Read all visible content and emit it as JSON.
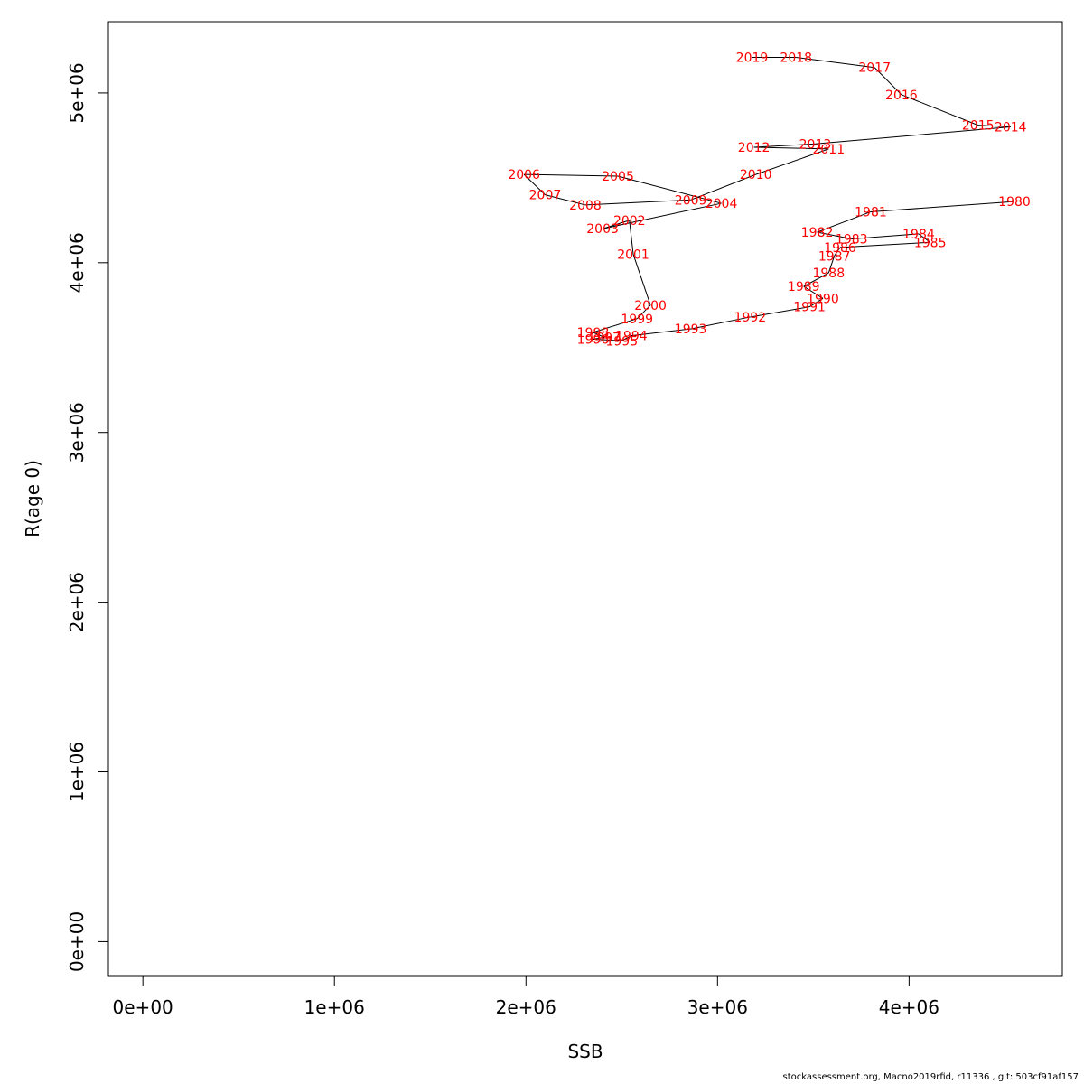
{
  "chart_data": {
    "type": "line",
    "xlabel": "SSB",
    "ylabel": "R(age 0)",
    "xlim": [
      -180000,
      4800000
    ],
    "ylim": [
      -200000,
      5420000
    ],
    "x_ticks": [
      {
        "value": 0,
        "label": "0e+00"
      },
      {
        "value": 1000000,
        "label": "1e+06"
      },
      {
        "value": 2000000,
        "label": "2e+06"
      },
      {
        "value": 3000000,
        "label": "3e+06"
      },
      {
        "value": 4000000,
        "label": "4e+06"
      }
    ],
    "y_ticks": [
      {
        "value": 0,
        "label": "0e+00"
      },
      {
        "value": 1000000,
        "label": "1e+06"
      },
      {
        "value": 2000000,
        "label": "2e+06"
      },
      {
        "value": 3000000,
        "label": "3e+06"
      },
      {
        "value": 4000000,
        "label": "4e+06"
      },
      {
        "value": 5000000,
        "label": "5e+06"
      }
    ],
    "grid": false,
    "line_color": "#000000",
    "label_color": "#ff0000",
    "points": [
      {
        "label": "1980",
        "x": 4550000,
        "y": 4360000
      },
      {
        "label": "1981",
        "x": 3800000,
        "y": 4300000
      },
      {
        "label": "1982",
        "x": 3520000,
        "y": 4180000
      },
      {
        "label": "1983",
        "x": 3700000,
        "y": 4140000
      },
      {
        "label": "1984",
        "x": 4050000,
        "y": 4170000
      },
      {
        "label": "1985",
        "x": 4110000,
        "y": 4120000
      },
      {
        "label": "1986",
        "x": 3640000,
        "y": 4090000
      },
      {
        "label": "1987",
        "x": 3610000,
        "y": 4040000
      },
      {
        "label": "1988",
        "x": 3580000,
        "y": 3940000
      },
      {
        "label": "1989",
        "x": 3450000,
        "y": 3860000
      },
      {
        "label": "1990",
        "x": 3550000,
        "y": 3790000
      },
      {
        "label": "1991",
        "x": 3480000,
        "y": 3740000
      },
      {
        "label": "1992",
        "x": 3170000,
        "y": 3680000
      },
      {
        "label": "1993",
        "x": 2860000,
        "y": 3610000
      },
      {
        "label": "1994",
        "x": 2550000,
        "y": 3570000
      },
      {
        "label": "1995",
        "x": 2500000,
        "y": 3540000
      },
      {
        "label": "1996",
        "x": 2350000,
        "y": 3550000
      },
      {
        "label": "1997",
        "x": 2410000,
        "y": 3560000
      },
      {
        "label": "1998",
        "x": 2350000,
        "y": 3590000
      },
      {
        "label": "1999",
        "x": 2580000,
        "y": 3670000
      },
      {
        "label": "2000",
        "x": 2650000,
        "y": 3750000
      },
      {
        "label": "2001",
        "x": 2560000,
        "y": 4050000
      },
      {
        "label": "2002",
        "x": 2540000,
        "y": 4250000
      },
      {
        "label": "2003",
        "x": 2400000,
        "y": 4200000
      },
      {
        "label": "2004",
        "x": 3020000,
        "y": 4350000
      },
      {
        "label": "2005",
        "x": 2480000,
        "y": 4510000
      },
      {
        "label": "2006",
        "x": 1990000,
        "y": 4520000
      },
      {
        "label": "2007",
        "x": 2100000,
        "y": 4400000
      },
      {
        "label": "2008",
        "x": 2310000,
        "y": 4340000
      },
      {
        "label": "2009",
        "x": 2860000,
        "y": 4370000
      },
      {
        "label": "2010",
        "x": 3200000,
        "y": 4520000
      },
      {
        "label": "2011",
        "x": 3580000,
        "y": 4670000
      },
      {
        "label": "2012",
        "x": 3190000,
        "y": 4680000
      },
      {
        "label": "2013",
        "x": 3510000,
        "y": 4700000
      },
      {
        "label": "2014",
        "x": 4530000,
        "y": 4800000
      },
      {
        "label": "2015",
        "x": 4360000,
        "y": 4810000
      },
      {
        "label": "2016",
        "x": 3960000,
        "y": 4990000
      },
      {
        "label": "2017",
        "x": 3820000,
        "y": 5150000
      },
      {
        "label": "2018",
        "x": 3410000,
        "y": 5210000
      },
      {
        "label": "2019",
        "x": 3180000,
        "y": 5210000
      }
    ]
  },
  "footer": {
    "text": "stockassessment.org, Macno2019rfid, r11336 , git: 503cf91af157"
  }
}
